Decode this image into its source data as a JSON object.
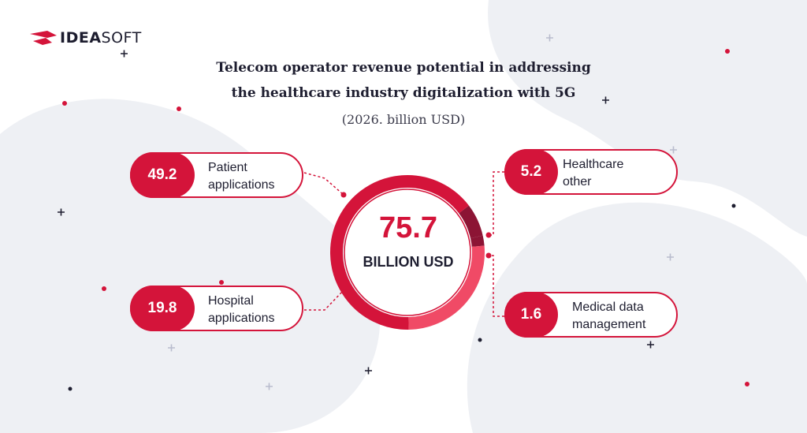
{
  "brand": {
    "part1": "IDEA",
    "part2": "SOFT"
  },
  "colors": {
    "accent": "#d4143a",
    "accent_light": "#f04a66",
    "dark_segment": "#8c1434",
    "text": "#1e1e30",
    "blob": "#eef0f4"
  },
  "chart_data": {
    "type": "pie",
    "title": "Telecom operator revenue potential in addressing the healthcare industry digitalization with 5G",
    "title_line1": "Telecom operator revenue potential in addressing",
    "title_line2": "the healthcare industry digitalization with 5G",
    "subtitle": "(2026. billion USD)",
    "total": {
      "value": "75.7",
      "unit": "BILLION USD"
    },
    "slices": [
      {
        "label": "Patient applications",
        "line1": "Patient",
        "line2": "applications",
        "value": 49.2
      },
      {
        "label": "Hospital applications",
        "line1": "Hospital",
        "line2": "applications",
        "value": 19.8
      },
      {
        "label": "Healthcare other",
        "line1": "Healthcare",
        "line2": "other",
        "value": 5.2
      },
      {
        "label": "Medical data management",
        "line1": "Medical data",
        "line2": "management",
        "value": 1.6
      }
    ]
  }
}
